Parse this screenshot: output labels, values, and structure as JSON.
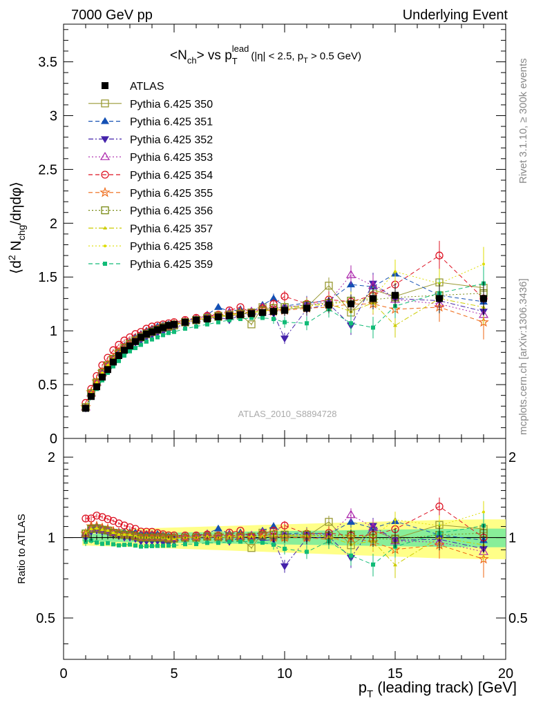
{
  "header": {
    "left": "7000 GeV pp",
    "right": "Underlying Event"
  },
  "side_text": {
    "rivet": "Rivet 3.1.10, ≥ 300k events",
    "mcplots": "mcplots.cern.ch [arXiv:1306.3436]"
  },
  "analysis_label": "ATLAS_2010_S8894728",
  "chart_data": [
    {
      "type": "scatter",
      "panel": "main",
      "title": "<Nch> vs pT lead (|η| < 2.5, pT > 0.5 GeV)",
      "ylabel": "⟨d² Nchg/dηdφ⟩",
      "xlabel": "pT (leading track) [GeV]",
      "xlim": [
        0,
        20
      ],
      "ylim": [
        0,
        3.85
      ],
      "yticks": [
        "0",
        "0.5",
        "1",
        "1.5",
        "2",
        "2.5",
        "3",
        "3.5"
      ],
      "xticks": [
        "0",
        "5",
        "10",
        "15",
        "20"
      ],
      "x": [
        1.0,
        1.25,
        1.5,
        1.75,
        2.0,
        2.25,
        2.5,
        2.75,
        3.0,
        3.25,
        3.5,
        3.75,
        4.0,
        4.25,
        4.5,
        4.75,
        5.0,
        5.5,
        6.0,
        6.5,
        7.0,
        7.5,
        8.0,
        8.5,
        9.0,
        9.5,
        10.0,
        11.0,
        12.0,
        13.0,
        14.0,
        15.0,
        17.0,
        19.0
      ],
      "legend_placement": "top-left",
      "series": [
        {
          "name": "ATLAS",
          "color": "#000000",
          "marker": "square-filled",
          "line": "none",
          "values": [
            0.28,
            0.39,
            0.48,
            0.57,
            0.64,
            0.71,
            0.77,
            0.82,
            0.86,
            0.9,
            0.94,
            0.97,
            0.99,
            1.01,
            1.03,
            1.05,
            1.06,
            1.08,
            1.1,
            1.11,
            1.13,
            1.14,
            1.15,
            1.16,
            1.17,
            1.18,
            1.19,
            1.21,
            1.24,
            1.25,
            1.3,
            1.33,
            1.3,
            1.3
          ]
        },
        {
          "name": "Pythia 6.425 350",
          "color": "#999933",
          "marker": "square-open",
          "line": "solid",
          "values": [
            0.29,
            0.42,
            0.52,
            0.61,
            0.68,
            0.74,
            0.8,
            0.84,
            0.88,
            0.91,
            0.95,
            0.98,
            1.0,
            1.02,
            1.04,
            1.05,
            1.06,
            1.08,
            1.1,
            1.12,
            1.13,
            1.14,
            1.15,
            1.06,
            1.22,
            1.19,
            1.2,
            1.22,
            1.42,
            1.17,
            1.38,
            1.32,
            1.45,
            1.4
          ]
        },
        {
          "name": "Pythia 6.425 351",
          "color": "#1450b4",
          "marker": "triangle-up-filled",
          "line": "dashed",
          "values": [
            0.29,
            0.43,
            0.53,
            0.62,
            0.69,
            0.75,
            0.81,
            0.86,
            0.9,
            0.94,
            0.97,
            1.0,
            1.02,
            1.04,
            1.05,
            1.06,
            1.07,
            1.09,
            1.12,
            1.15,
            1.22,
            1.18,
            1.2,
            1.17,
            1.24,
            1.3,
            1.23,
            1.26,
            1.28,
            1.43,
            1.41,
            1.53,
            1.33,
            1.27
          ]
        },
        {
          "name": "Pythia 6.425 352",
          "color": "#4422aa",
          "marker": "triangle-down-filled",
          "line": "dashdot",
          "values": [
            0.28,
            0.41,
            0.51,
            0.6,
            0.67,
            0.73,
            0.78,
            0.82,
            0.86,
            0.89,
            0.91,
            0.94,
            0.96,
            0.98,
            0.99,
            1.0,
            1.03,
            1.06,
            1.09,
            1.11,
            1.13,
            1.1,
            1.15,
            1.17,
            1.14,
            1.16,
            0.93,
            1.2,
            1.25,
            1.05,
            1.44,
            1.3,
            1.28,
            1.18
          ]
        },
        {
          "name": "Pythia 6.425 353",
          "color": "#aa22aa",
          "marker": "triangle-up-open",
          "line": "dotted",
          "values": [
            0.29,
            0.42,
            0.52,
            0.61,
            0.68,
            0.74,
            0.8,
            0.84,
            0.88,
            0.91,
            0.94,
            0.97,
            0.99,
            1.01,
            1.03,
            1.04,
            1.06,
            1.09,
            1.11,
            1.14,
            1.14,
            1.17,
            1.16,
            1.18,
            1.22,
            1.21,
            1.22,
            1.24,
            1.27,
            1.52,
            1.42,
            1.29,
            1.25,
            1.15
          ]
        },
        {
          "name": "Pythia 6.425 354",
          "color": "#dd1122",
          "marker": "circle-open",
          "line": "dashed",
          "values": [
            0.33,
            0.46,
            0.58,
            0.68,
            0.75,
            0.82,
            0.87,
            0.91,
            0.94,
            0.97,
            0.99,
            1.02,
            1.04,
            1.05,
            1.06,
            1.07,
            1.08,
            1.1,
            1.12,
            1.14,
            1.15,
            1.19,
            1.22,
            1.17,
            1.21,
            1.25,
            1.32,
            1.25,
            1.29,
            1.27,
            1.33,
            1.43,
            1.7,
            1.3
          ]
        },
        {
          "name": "Pythia 6.425 355",
          "color": "#ee6611",
          "marker": "star-open",
          "line": "dashed",
          "values": [
            0.29,
            0.43,
            0.53,
            0.62,
            0.69,
            0.75,
            0.8,
            0.84,
            0.88,
            0.91,
            0.94,
            0.97,
            0.99,
            1.01,
            1.03,
            1.04,
            1.06,
            1.08,
            1.1,
            1.12,
            1.14,
            1.15,
            1.17,
            1.16,
            1.2,
            1.18,
            1.19,
            1.21,
            1.22,
            1.25,
            1.25,
            1.2,
            1.22,
            1.08
          ]
        },
        {
          "name": "Pythia 6.425 356",
          "color": "#778811",
          "marker": "square-open",
          "line": "dotted",
          "values": [
            0.29,
            0.42,
            0.52,
            0.61,
            0.68,
            0.74,
            0.79,
            0.84,
            0.88,
            0.91,
            0.94,
            0.97,
            0.99,
            1.01,
            1.03,
            1.04,
            1.05,
            1.08,
            1.1,
            1.12,
            1.14,
            1.15,
            1.16,
            1.17,
            1.19,
            1.21,
            1.22,
            1.24,
            1.26,
            1.28,
            1.29,
            1.31,
            1.33,
            1.35
          ]
        },
        {
          "name": "Pythia 6.425 357",
          "color": "#cccc00",
          "marker": "tri-small",
          "line": "dashdot",
          "values": [
            0.29,
            0.42,
            0.52,
            0.61,
            0.68,
            0.74,
            0.79,
            0.84,
            0.88,
            0.91,
            0.94,
            0.97,
            0.99,
            1.01,
            1.03,
            1.04,
            1.05,
            1.08,
            1.1,
            1.12,
            1.13,
            1.15,
            1.16,
            1.17,
            1.18,
            1.2,
            1.21,
            1.23,
            1.25,
            1.18,
            1.26,
            1.05,
            1.3,
            1.22
          ]
        },
        {
          "name": "Pythia 6.425 358",
          "color": "#dddd00",
          "marker": "dot-small",
          "line": "dotted",
          "values": [
            0.29,
            0.42,
            0.52,
            0.61,
            0.68,
            0.74,
            0.79,
            0.84,
            0.88,
            0.91,
            0.94,
            0.97,
            0.99,
            1.01,
            1.03,
            1.04,
            1.05,
            1.08,
            1.1,
            1.12,
            1.13,
            1.15,
            1.16,
            1.17,
            1.18,
            1.2,
            1.21,
            1.23,
            1.25,
            1.27,
            1.31,
            1.55,
            1.44,
            1.62
          ]
        },
        {
          "name": "Pythia 6.425 359",
          "color": "#11bb77",
          "marker": "square-small",
          "line": "dashed",
          "values": [
            0.27,
            0.38,
            0.46,
            0.54,
            0.61,
            0.67,
            0.72,
            0.77,
            0.81,
            0.84,
            0.87,
            0.9,
            0.92,
            0.94,
            0.96,
            0.98,
            0.99,
            1.02,
            1.04,
            1.06,
            1.08,
            1.1,
            1.11,
            1.12,
            1.12,
            1.11,
            1.08,
            1.07,
            1.2,
            1.07,
            1.03,
            1.23,
            1.35,
            1.44
          ]
        }
      ]
    },
    {
      "type": "scatter",
      "panel": "ratio",
      "ylabel": "Ratio to ATLAS",
      "ylim": [
        0.35,
        2.35
      ],
      "yscale": "log",
      "yticks": [
        "0.5",
        "1",
        "2"
      ],
      "note": "ratio of each Pythia series to ATLAS; uncertainty bands green (stat) and yellow (total)"
    }
  ]
}
